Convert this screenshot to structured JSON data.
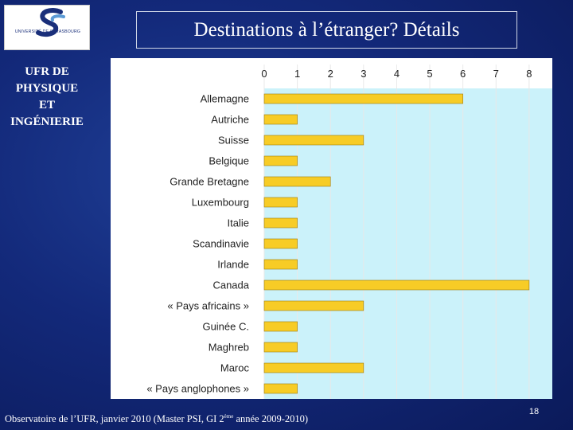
{
  "logo": {
    "text": "UNIVERSITÉ DE STRASBOURG",
    "colors": {
      "primary": "#1a2f7a",
      "accent": "#5a9ad5"
    }
  },
  "title": "Destinations à l’étranger? Détails",
  "side_label": [
    "UFR DE",
    "PHYSIQUE",
    "ET",
    "INGÉNIERIE"
  ],
  "footer": {
    "text_before": "Observatoire de l’UFR, janvier 2010 (Master PSI, GI 2",
    "superscript": "ème",
    "text_after": " année 2009-2010)"
  },
  "page_number": "18",
  "colors": {
    "background": "#13297a",
    "plot_bg": "#cbf2fa",
    "bar_fill": "#f7cc26",
    "bar_stroke": "#9a7a10",
    "grid": "#e8e8e8"
  },
  "chart_data": {
    "type": "bar",
    "orientation": "horizontal",
    "categories": [
      "Allemagne",
      "Autriche",
      "Suisse",
      "Belgique",
      "Grande Bretagne",
      "Luxembourg",
      "Italie",
      "Scandinavie",
      "Irlande",
      "Canada",
      "« Pays africains »",
      "Guinée C.",
      "Maghreb",
      "Maroc",
      "« Pays anglophones »"
    ],
    "values": [
      6,
      1,
      3,
      1,
      2,
      1,
      1,
      1,
      1,
      8,
      3,
      1,
      1,
      3,
      1
    ],
    "xticks": [
      "0",
      "1",
      "2",
      "3",
      "4",
      "5",
      "6",
      "7",
      "8"
    ],
    "xlim": [
      0,
      8.7
    ],
    "x_axis_position": "top",
    "grid": true,
    "legend": "none"
  }
}
